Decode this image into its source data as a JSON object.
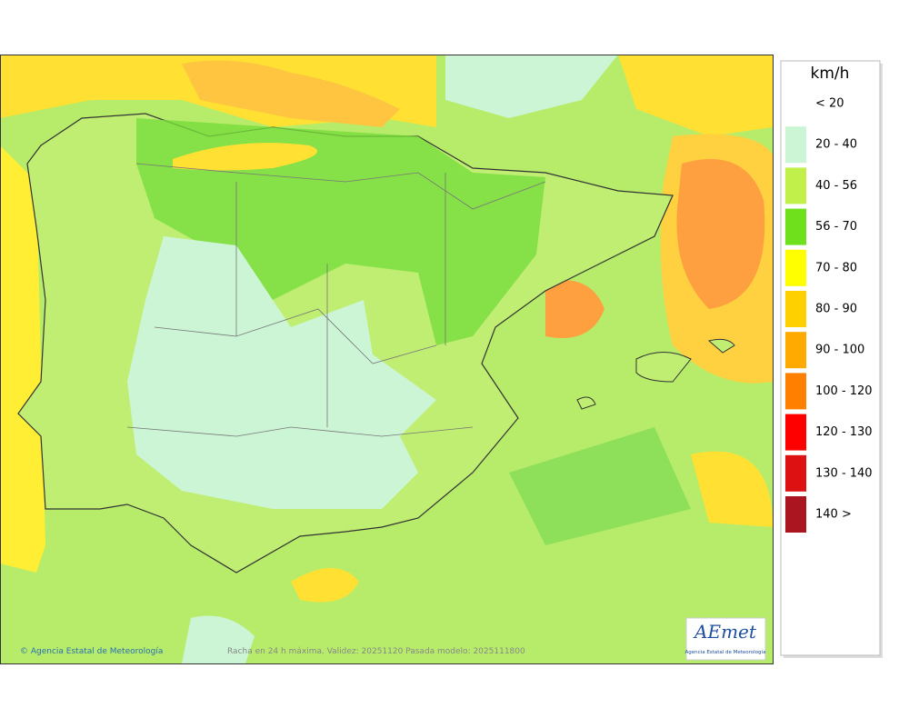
{
  "legend": {
    "title": "km/h",
    "items": [
      {
        "label": "< 20",
        "color": null
      },
      {
        "label": "20 - 40",
        "color": "#ccf5d6"
      },
      {
        "label": "40 - 56",
        "color": "#c2f04a"
      },
      {
        "label": "56 - 70",
        "color": "#6ee01c"
      },
      {
        "label": "70 - 80",
        "color": "#ffff00"
      },
      {
        "label": "80 - 90",
        "color": "#ffd000"
      },
      {
        "label": "90 - 100",
        "color": "#ffaa00"
      },
      {
        "label": "100 - 120",
        "color": "#ff8000"
      },
      {
        "label": "120 - 130",
        "color": "#ff0000"
      },
      {
        "label": "130 - 140",
        "color": "#dd1111"
      },
      {
        "label": "140 >",
        "color": "#aa1520"
      }
    ]
  },
  "map": {
    "copyright": "© Agencia Estatal de Meteorología",
    "caption": "Racha en 24 h máxima. Validez: 20251120 Pasada modelo: 2025111800",
    "logo": {
      "name": "AEmet",
      "subtitle": "Agencia Estatal de Meteorología"
    }
  }
}
